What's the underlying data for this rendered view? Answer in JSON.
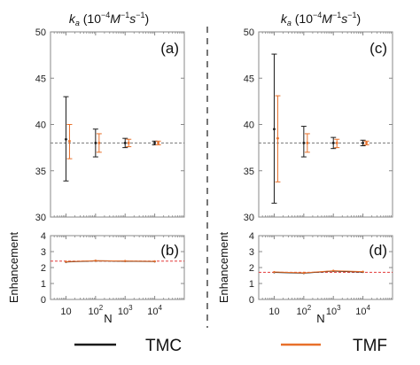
{
  "colors": {
    "tmc": "#1a1a1a",
    "tmf": "#e8702a",
    "ref_line_top": "#777777",
    "ref_line_bottom": "#e23a3a",
    "frame": "#888888",
    "separator": "#555555"
  },
  "legend": {
    "items": [
      {
        "label": "TMC",
        "color": "#1a1a1a"
      },
      {
        "label": "TMF",
        "color": "#e8702a"
      }
    ]
  },
  "chart_data": [
    {
      "type": "scatter",
      "panel_label": "(a)",
      "title": "k_a (10^-4 M^-1 s^-1)",
      "title_parts": {
        "k": "k",
        "sub": "a",
        "open": "(10",
        "e1": "−4",
        "M": "M",
        "e2": "−1",
        "s": "s",
        "e3": "−1",
        "close": ")"
      },
      "xlabel": "",
      "ylabel": "",
      "xscale": "log",
      "xlim": [
        3,
        100000
      ],
      "ylim": [
        30,
        50
      ],
      "yticks": [
        30,
        35,
        40,
        45,
        50
      ],
      "reference_line": 38.0,
      "x": [
        10,
        100,
        1000,
        10000
      ],
      "series": [
        {
          "name": "TMC",
          "mean": [
            38.4,
            38.0,
            38.0,
            38.0
          ],
          "err_low": [
            33.9,
            36.5,
            37.5,
            37.8
          ],
          "err_high": [
            43.0,
            39.5,
            38.5,
            38.2
          ]
        },
        {
          "name": "TMF",
          "mean": [
            38.2,
            38.0,
            38.0,
            38.0
          ],
          "err_low": [
            36.3,
            37.0,
            37.6,
            37.8
          ],
          "err_high": [
            40.0,
            39.0,
            38.4,
            38.2
          ]
        }
      ]
    },
    {
      "type": "line",
      "panel_label": "(b)",
      "xlabel": "N",
      "ylabel": "Enhancement",
      "xscale": "log",
      "xlim": [
        3,
        100000
      ],
      "ylim": [
        0,
        4
      ],
      "yticks": [
        0,
        1,
        2,
        3,
        4
      ],
      "reference_line": 2.4,
      "x": [
        10,
        100,
        1000,
        10000
      ],
      "xtick_labels": {
        "b10": "10",
        "b100": "10",
        "e100": "2",
        "b1000": "10",
        "e1000": "3",
        "b10000": "10",
        "e10000": "4"
      },
      "series": [
        {
          "name": "TMC",
          "values": [
            2.35,
            2.42,
            2.4,
            2.38
          ]
        },
        {
          "name": "TMF",
          "values": [
            2.37,
            2.43,
            2.41,
            2.39
          ]
        }
      ]
    },
    {
      "type": "scatter",
      "panel_label": "(c)",
      "title": "k_a (10^-4 M^-1 s^-1)",
      "title_parts": {
        "k": "k",
        "sub": "a",
        "open": "(10",
        "e1": "−4",
        "M": "M",
        "e2": "−1",
        "s": "s",
        "e3": "−1",
        "close": ")"
      },
      "xlabel": "",
      "ylabel": "",
      "xscale": "log",
      "xlim": [
        3,
        100000
      ],
      "ylim": [
        30,
        50
      ],
      "yticks": [
        30,
        35,
        40,
        45,
        50
      ],
      "reference_line": 38.0,
      "x": [
        10,
        100,
        1000,
        10000
      ],
      "series": [
        {
          "name": "TMC",
          "mean": [
            39.5,
            38.0,
            38.0,
            38.0
          ],
          "err_low": [
            31.5,
            36.5,
            37.4,
            37.7
          ],
          "err_high": [
            47.6,
            39.8,
            38.6,
            38.3
          ]
        },
        {
          "name": "TMF",
          "mean": [
            38.5,
            38.0,
            38.0,
            38.0
          ],
          "err_low": [
            33.8,
            37.0,
            37.5,
            37.8
          ],
          "err_high": [
            43.1,
            39.0,
            38.4,
            38.2
          ]
        }
      ]
    },
    {
      "type": "line",
      "panel_label": "(d)",
      "xlabel": "N",
      "ylabel": "Enhancement",
      "xscale": "log",
      "xlim": [
        3,
        100000
      ],
      "ylim": [
        0,
        4
      ],
      "yticks": [
        0,
        1,
        2,
        3,
        4
      ],
      "reference_line": 1.7,
      "x": [
        10,
        100,
        1000,
        10000
      ],
      "xtick_labels": {
        "b10": "10",
        "b100": "10",
        "e100": "2",
        "b1000": "10",
        "e1000": "3",
        "b10000": "10",
        "e10000": "4"
      },
      "series": [
        {
          "name": "TMC",
          "values": [
            1.7,
            1.65,
            1.78,
            1.72
          ]
        },
        {
          "name": "TMF",
          "values": [
            1.72,
            1.67,
            1.8,
            1.74
          ]
        }
      ]
    }
  ]
}
